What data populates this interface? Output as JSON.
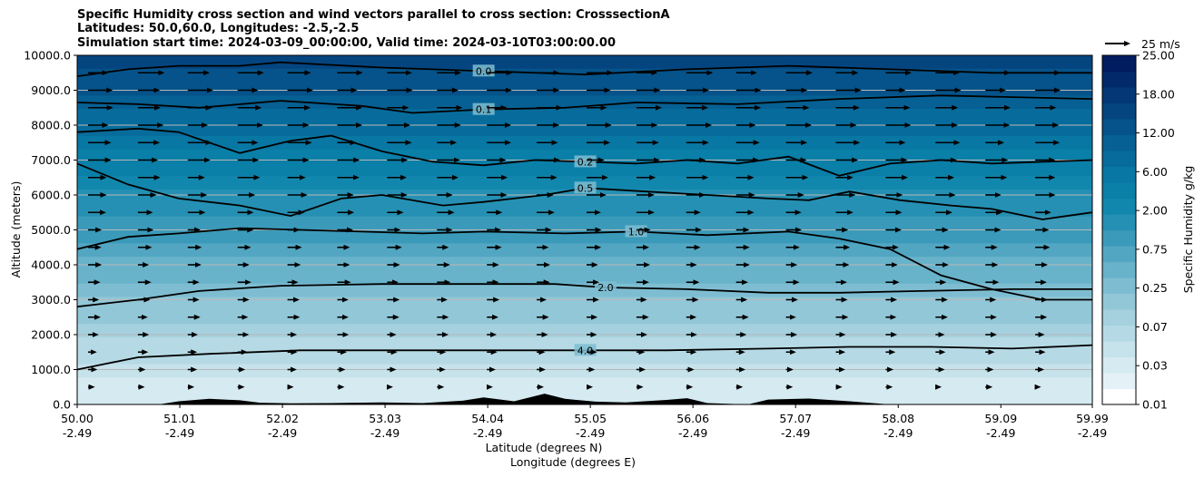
{
  "chart_data": {
    "type": "contourf",
    "title_lines": [
      "Specific Humidity cross section and wind vectors parallel to cross section: CrosssectionA",
      "Latitudes: 50.0,60.0, Longitudes: -2.5,-2.5",
      "Simulation start time: 2024-03-09_00:00:00, Valid time: 2024-03-10T03:00:00.00"
    ],
    "ylabel": "Altitude (meters)",
    "xlabel_lat": "Latitude (degrees N)",
    "xlabel_lon": "Longitude (degrees E)",
    "ylim": [
      0,
      10000
    ],
    "yticks": [
      "0.0",
      "1000.0",
      "2000.0",
      "3000.0",
      "4000.0",
      "5000.0",
      "6000.0",
      "7000.0",
      "8000.0",
      "9000.0",
      "10000.0"
    ],
    "ytick_values": [
      0,
      1000,
      2000,
      3000,
      4000,
      5000,
      6000,
      7000,
      8000,
      9000,
      10000
    ],
    "xlim": [
      50.0,
      59.99
    ],
    "xticks_lat": [
      "50.00",
      "51.01",
      "52.02",
      "53.03",
      "54.04",
      "55.05",
      "56.06",
      "57.07",
      "58.08",
      "59.09",
      "59.99"
    ],
    "xticks_lon": [
      "-2.49",
      "-2.49",
      "-2.49",
      "-2.49",
      "-2.49",
      "-2.49",
      "-2.49",
      "-2.49",
      "-2.49",
      "-2.49",
      "-2.49"
    ],
    "xtick_values": [
      50.0,
      51.01,
      52.02,
      53.03,
      54.04,
      55.05,
      56.06,
      57.07,
      58.08,
      59.09,
      59.99
    ],
    "colorbar": {
      "label": "Specific Humidity g/kg",
      "levels": [
        0.01,
        0.02,
        0.03,
        0.05,
        0.07,
        0.1,
        0.15,
        0.25,
        0.35,
        0.5,
        0.75,
        1.0,
        1.5,
        2.0,
        3.0,
        4.0,
        6.0,
        8.0,
        12.0,
        15.0,
        18.0,
        22.0,
        25.0
      ],
      "tick_labels": [
        "0.01",
        "0.03",
        "0.07",
        "0.25",
        "0.75",
        "2.00",
        "6.00",
        "12.00",
        "18.00",
        "25.00"
      ],
      "colors": [
        "#ffffff",
        "#e4f1f6",
        "#d5eaf1",
        "#c6e2eb",
        "#b6dae5",
        "#a5d1df",
        "#92c7d8",
        "#7ebdd1",
        "#68b2ca",
        "#52a6c2",
        "#3b9aba",
        "#2590b3",
        "#1287ad",
        "#0a7fa8",
        "#0877a3",
        "#076c9c",
        "#066093",
        "#05538a",
        "#044580",
        "#033775",
        "#022a6a",
        "#011c5f"
      ]
    },
    "contour_lines": [
      {
        "label": "0.0",
        "points": [
          [
            50.0,
            9400
          ],
          [
            50.5,
            9600
          ],
          [
            51.0,
            9700
          ],
          [
            51.6,
            9700
          ],
          [
            52.0,
            9800
          ],
          [
            53.0,
            9650
          ],
          [
            54.0,
            9550
          ],
          [
            55.0,
            9450
          ],
          [
            56.0,
            9600
          ],
          [
            57.0,
            9700
          ],
          [
            58.0,
            9600
          ],
          [
            59.0,
            9500
          ],
          [
            59.99,
            9500
          ]
        ]
      },
      {
        "label": "0.1",
        "points": [
          [
            50.0,
            8650
          ],
          [
            50.6,
            8600
          ],
          [
            51.2,
            8500
          ],
          [
            52.0,
            8700
          ],
          [
            52.8,
            8550
          ],
          [
            53.3,
            8350
          ],
          [
            54.0,
            8450
          ],
          [
            54.8,
            8500
          ],
          [
            55.5,
            8650
          ],
          [
            56.5,
            8600
          ],
          [
            57.5,
            8750
          ],
          [
            58.5,
            8850
          ],
          [
            59.99,
            8750
          ]
        ]
      },
      {
        "label": "0.2",
        "points": [
          [
            50.0,
            7800
          ],
          [
            50.6,
            7900
          ],
          [
            51.0,
            7800
          ],
          [
            51.6,
            7200
          ],
          [
            52.1,
            7550
          ],
          [
            52.5,
            7700
          ],
          [
            53.0,
            7250
          ],
          [
            53.5,
            6950
          ],
          [
            54.0,
            6850
          ],
          [
            54.5,
            7000
          ],
          [
            55.0,
            6950
          ],
          [
            55.5,
            6900
          ],
          [
            56.0,
            7000
          ],
          [
            56.5,
            6900
          ],
          [
            57.0,
            7100
          ],
          [
            57.5,
            6550
          ],
          [
            58.0,
            6900
          ],
          [
            58.5,
            7000
          ],
          [
            59.0,
            6900
          ],
          [
            59.99,
            7000
          ]
        ]
      },
      {
        "label": "0.5",
        "points": [
          [
            50.0,
            6900
          ],
          [
            50.5,
            6300
          ],
          [
            51.0,
            5900
          ],
          [
            51.6,
            5700
          ],
          [
            52.1,
            5400
          ],
          [
            52.6,
            5900
          ],
          [
            53.0,
            6000
          ],
          [
            53.6,
            5700
          ],
          [
            54.0,
            5800
          ],
          [
            54.6,
            6000
          ],
          [
            55.0,
            6200
          ],
          [
            55.6,
            6100
          ],
          [
            56.2,
            6000
          ],
          [
            56.8,
            5900
          ],
          [
            57.2,
            5850
          ],
          [
            57.6,
            6100
          ],
          [
            58.1,
            5850
          ],
          [
            58.6,
            5700
          ],
          [
            59.0,
            5600
          ],
          [
            59.5,
            5300
          ],
          [
            59.99,
            5500
          ]
        ]
      },
      {
        "label": "1.0",
        "points": [
          [
            50.0,
            4450
          ],
          [
            50.5,
            4800
          ],
          [
            51.0,
            4900
          ],
          [
            51.6,
            5050
          ],
          [
            52.2,
            5000
          ],
          [
            52.8,
            4950
          ],
          [
            53.4,
            4900
          ],
          [
            54.0,
            4950
          ],
          [
            54.8,
            4900
          ],
          [
            55.5,
            4950
          ],
          [
            56.2,
            4850
          ],
          [
            57.0,
            4950
          ],
          [
            57.5,
            4750
          ],
          [
            58.0,
            4450
          ],
          [
            58.5,
            3700
          ],
          [
            59.0,
            3300
          ],
          [
            59.5,
            3000
          ],
          [
            59.99,
            3000
          ]
        ]
      },
      {
        "label": "2.0",
        "points": [
          [
            50.0,
            2800
          ],
          [
            50.6,
            3000
          ],
          [
            51.2,
            3250
          ],
          [
            52.0,
            3400
          ],
          [
            53.0,
            3450
          ],
          [
            54.0,
            3450
          ],
          [
            54.7,
            3450
          ],
          [
            55.2,
            3350
          ],
          [
            56.0,
            3300
          ],
          [
            56.8,
            3200
          ],
          [
            57.5,
            3200
          ],
          [
            58.3,
            3250
          ],
          [
            59.2,
            3300
          ],
          [
            59.99,
            3300
          ]
        ]
      },
      {
        "label": "4.0",
        "points": [
          [
            50.0,
            1000
          ],
          [
            50.6,
            1350
          ],
          [
            51.3,
            1450
          ],
          [
            52.2,
            1550
          ],
          [
            53.2,
            1550
          ],
          [
            54.2,
            1550
          ],
          [
            55.0,
            1550
          ],
          [
            55.8,
            1550
          ],
          [
            56.8,
            1600
          ],
          [
            57.6,
            1650
          ],
          [
            58.4,
            1650
          ],
          [
            59.2,
            1600
          ],
          [
            59.99,
            1700
          ]
        ]
      }
    ],
    "wind_reference": {
      "label": "25 m/s",
      "value": 25
    },
    "wind_vectors": {
      "levels_m": [
        9500,
        9000,
        8500,
        8000,
        7500,
        7000,
        6500,
        6000,
        5500,
        5000,
        4500,
        4000,
        3500,
        3000,
        2500,
        2000,
        1500,
        1000,
        500
      ],
      "speeds_ms": [
        23,
        22,
        22,
        22,
        21,
        20,
        19,
        17,
        15,
        13,
        12,
        11,
        11,
        10,
        10,
        9,
        8,
        7,
        5
      ]
    },
    "terrain": [
      [
        50.0,
        0
      ],
      [
        50.8,
        0
      ],
      [
        51.0,
        90
      ],
      [
        51.3,
        160
      ],
      [
        51.6,
        120
      ],
      [
        51.8,
        50
      ],
      [
        52.1,
        30
      ],
      [
        52.5,
        40
      ],
      [
        53.0,
        60
      ],
      [
        53.4,
        40
      ],
      [
        53.8,
        110
      ],
      [
        54.0,
        200
      ],
      [
        54.3,
        90
      ],
      [
        54.6,
        310
      ],
      [
        54.8,
        160
      ],
      [
        55.1,
        80
      ],
      [
        55.4,
        60
      ],
      [
        55.8,
        130
      ],
      [
        56.0,
        180
      ],
      [
        56.2,
        40
      ],
      [
        56.6,
        0
      ],
      [
        56.8,
        140
      ],
      [
        57.2,
        170
      ],
      [
        57.6,
        90
      ],
      [
        58.0,
        0
      ],
      [
        59.99,
        0
      ]
    ]
  }
}
